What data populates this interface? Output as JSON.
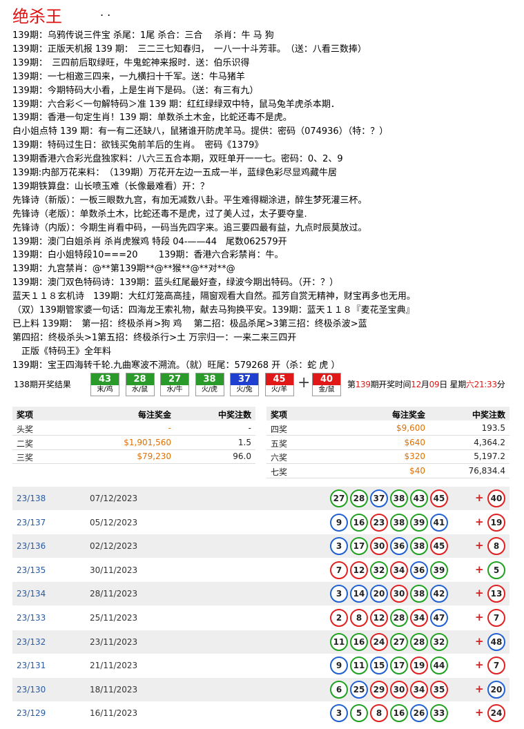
{
  "header": {
    "title": "绝杀王",
    "dots": ". ."
  },
  "lines": [
    "139期：乌鸦传说三件宝 杀尾：1尾 杀合：三合　 杀肖：牛 马 狗",
    "139期：正版天机报 139 期：　三二三七知春归，　一八一十斗芳菲。　（送：八看三数捧）",
    "139期：　三四前后取绿旺，牛鬼蛇神来报时．送：伯乐识得",
    "139期：一七相邀三四来，一九横扫十千军。送：牛马猪羊",
    "139期：今期特码大小看，上是生肖下是码。（送：有三有九）",
    "139期：六合彩＜一句解特码＞准 139 期：红红绿绿双中特，鼠马兔羊虎杀本期．",
    "139期：香港一句定生肖！139 期：单数杀土木金，比蛇还毒不是虎。",
    "白小姐点特 139 期：有一有二还缺八，鼠猪谁开防虎羊马。提供：密码（074936）（特：？）",
    "139期：特码过生日：欲钱买兔前羊后的生肖。　密码《1379》",
    "139期香港六合彩光盘独家料：八六三五合本期，双旺单开一一七。密码：0、2、9",
    "139期:内部万花来料：　（139期）万花开左边一五成一半，蓝绿色彩尽显鸡藏牛居",
    "139期铁算盘：山长喷玉难（长像最难看）开：？",
    "先锋诗（新版）：一板三眼数九宫，有加无减数八卦。平生难得糊涂进，醉生梦死灌三杯。",
    "先锋诗（老版）：单数杀土木，比蛇还毒不是虎，过了美人过，太子要夺皇.",
    "先锋诗（内版）：今期生肖看中码，一码当先四字来。追三要四最有益，九点时辰莫放过。",
    "139期：澳门白姐杀肖 杀肖虎猴鸡 特段 04-——44　尾数062579开",
    "139期：白小姐特段10===20　　 139期：香港六合彩禁肖：牛。",
    "139期：九宫禁肖：@**第139期**@**猴**@**对**@",
    "139期：澳门双色特码诗：139期：蓝头红尾最好查，绿波今期出特码。（开：？）",
    "蓝天１１８玄机诗　139期：大红灯笼高高挂，隔窗观看大自然。孤芳自赏无精神，财宝再多也无用。",
    "（双）139期管家婆一句话：四海龙王索礼物，献去马狗换平安。139期：蓝天１１８『麦花圣宝典』",
    "已上料 139期：　第一招：终极杀肖>狗 鸡　 第二招：极品杀尾>3第三招：终极杀波>蓝",
    "第四招：终极杀头>1第五招：终极杀行>土 万宗归一：一来二来三四开",
    "　正版《特码王》全年料",
    "139期：宝王四海转千轮.九曲寒波不溯流。（就）旺尾：579268 开（杀：蛇 虎 ）"
  ],
  "draw_result": {
    "label": "138期开奖结果",
    "balls": [
      {
        "number": 43,
        "zodiac": "末/鸡",
        "color": "#2a9a2a"
      },
      {
        "number": 28,
        "zodiac": "水/鼠",
        "color": "#2a9a2a"
      },
      {
        "number": 27,
        "zodiac": "水/牛",
        "color": "#2a9a2a"
      },
      {
        "number": 38,
        "zodiac": "火/虎",
        "color": "#2a9a2a"
      },
      {
        "number": 37,
        "zodiac": "火/兔",
        "color": "#1f3fd0"
      },
      {
        "number": 45,
        "zodiac": "火/羊",
        "color": "#e01818"
      }
    ],
    "plus": "+",
    "special": {
      "number": 40,
      "zodiac": "金/鼠",
      "color": "#e01818"
    },
    "next": [
      {
        "text": "第",
        "red": false
      },
      {
        "text": "139",
        "red": true
      },
      {
        "text": "期开奖时间",
        "red": false
      },
      {
        "text": "12",
        "red": true
      },
      {
        "text": "月",
        "red": false
      },
      {
        "text": "09",
        "red": true
      },
      {
        "text": "日 星期",
        "red": false
      },
      {
        "text": "六",
        "red": true
      },
      {
        "text": "21:33",
        "red": true
      },
      {
        "text": "分",
        "red": false
      }
    ]
  },
  "prize_table": {
    "headers": [
      "奖项",
      "每注奖金",
      "中奖注数"
    ],
    "left_rows": [
      [
        "头奖",
        "-",
        "-"
      ],
      [
        "二奖",
        "$1,901,560",
        "1.5"
      ],
      [
        "三奖",
        "$79,230",
        "96.0"
      ]
    ],
    "right_rows": [
      [
        "四奖",
        "$9,600",
        "193.5"
      ],
      [
        "五奖",
        "$640",
        "4,364.2"
      ],
      [
        "六奖",
        "$320",
        "5,197.2"
      ],
      [
        "七奖",
        "$40",
        "76,834.4"
      ]
    ]
  },
  "history": {
    "plus": "+",
    "rows": [
      {
        "period": "23/138",
        "date": "07/12/2023",
        "numbers": [
          27,
          28,
          37,
          38,
          43,
          45
        ],
        "colors": [
          "green",
          "green",
          "blue",
          "green",
          "green",
          "red"
        ],
        "special": 40,
        "special_color": "red"
      },
      {
        "period": "23/137",
        "date": "05/12/2023",
        "numbers": [
          9,
          16,
          23,
          38,
          39,
          41
        ],
        "colors": [
          "blue",
          "green",
          "red",
          "green",
          "green",
          "blue"
        ],
        "special": 19,
        "special_color": "red"
      },
      {
        "period": "23/136",
        "date": "02/12/2023",
        "numbers": [
          3,
          17,
          30,
          36,
          38,
          45
        ],
        "colors": [
          "blue",
          "green",
          "red",
          "blue",
          "green",
          "red"
        ],
        "special": 8,
        "special_color": "red"
      },
      {
        "period": "23/135",
        "date": "30/11/2023",
        "numbers": [
          7,
          12,
          32,
          34,
          36,
          39
        ],
        "colors": [
          "red",
          "red",
          "green",
          "red",
          "blue",
          "green"
        ],
        "special": 5,
        "special_color": "green"
      },
      {
        "period": "23/134",
        "date": "28/11/2023",
        "numbers": [
          3,
          14,
          20,
          30,
          38,
          42
        ],
        "colors": [
          "blue",
          "blue",
          "blue",
          "red",
          "green",
          "blue"
        ],
        "special": 13,
        "special_color": "red"
      },
      {
        "period": "23/133",
        "date": "25/11/2023",
        "numbers": [
          2,
          8,
          12,
          28,
          34,
          47
        ],
        "colors": [
          "red",
          "red",
          "red",
          "green",
          "red",
          "blue"
        ],
        "special": 7,
        "special_color": "red"
      },
      {
        "period": "23/132",
        "date": "23/11/2023",
        "numbers": [
          11,
          16,
          24,
          27,
          28,
          32
        ],
        "colors": [
          "green",
          "green",
          "red",
          "green",
          "green",
          "green"
        ],
        "special": 48,
        "special_color": "blue"
      },
      {
        "period": "23/131",
        "date": "21/11/2023",
        "numbers": [
          9,
          11,
          15,
          17,
          19,
          44
        ],
        "colors": [
          "blue",
          "green",
          "blue",
          "green",
          "red",
          "green"
        ],
        "special": 7,
        "special_color": "red"
      },
      {
        "period": "23/130",
        "date": "18/11/2023",
        "numbers": [
          6,
          25,
          29,
          30,
          34,
          35
        ],
        "colors": [
          "green",
          "blue",
          "red",
          "red",
          "red",
          "red"
        ],
        "special": 20,
        "special_color": "blue"
      },
      {
        "period": "23/129",
        "date": "16/11/2023",
        "numbers": [
          3,
          5,
          8,
          16,
          26,
          33
        ],
        "colors": [
          "blue",
          "green",
          "red",
          "green",
          "blue",
          "green"
        ],
        "special": 24,
        "special_color": "red"
      }
    ]
  }
}
